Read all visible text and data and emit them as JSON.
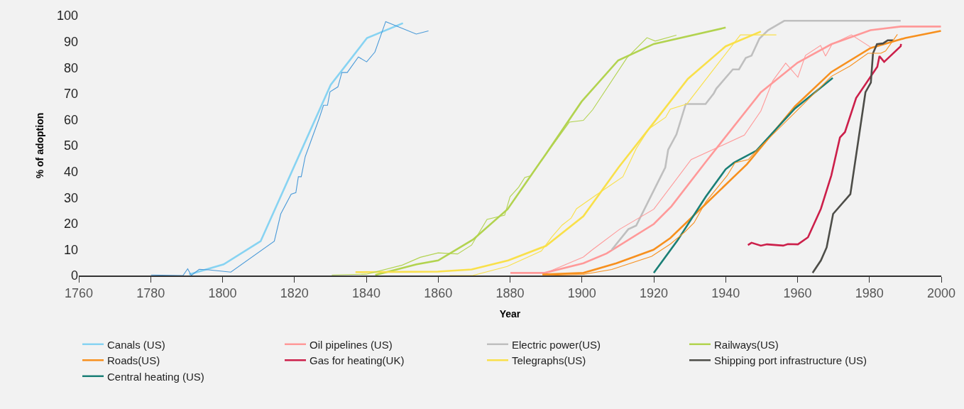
{
  "chart_data": {
    "type": "line",
    "xlabel": "Year",
    "ylabel": "% of adoption",
    "xlim": [
      1760,
      2000
    ],
    "xticks": [
      1760,
      1780,
      1800,
      1820,
      1840,
      1860,
      1880,
      1900,
      1920,
      1940,
      1960,
      1980,
      2000
    ],
    "ylim": [
      0,
      100
    ],
    "yticks": [
      0,
      10,
      20,
      30,
      40,
      50,
      60,
      70,
      80,
      90,
      100
    ],
    "grid": false,
    "legend": "bottom",
    "marker": "none",
    "line_style": "solid",
    "series": [
      {
        "name": "Canals (US)",
        "color": "#87d3f2",
        "x": [
          1790.7,
          1800.3,
          1810.6,
          1830.1,
          1840.2,
          1850.2
        ],
        "values": [
          0.4,
          4.3,
          13.2,
          73.4,
          91.4,
          97.1
        ]
      },
      {
        "name": "Oil pipelines (US)",
        "color": "#ff9999",
        "x": [
          1880.1,
          1889.6,
          1900.4,
          1906.9,
          1920,
          1924.9,
          1934.5,
          1949.8,
          1960,
          1969.4,
          1980.3,
          1988.7,
          1999.9
        ],
        "values": [
          1,
          1,
          4.7,
          8.5,
          19.8,
          26.6,
          43.8,
          70.5,
          81.9,
          89,
          94.4,
          95.8,
          95.8
        ]
      },
      {
        "name": "Electric power(US)",
        "color": "#bfbfbf",
        "x": [
          1908.3,
          1912.9,
          1915.1,
          1923.2,
          1924,
          1926.3,
          1928.9,
          1934.4,
          1936.7,
          1937.4,
          1942,
          1943.7,
          1945.6,
          1947.2,
          1949.4,
          1951.8,
          1956.3,
          1988.7
        ],
        "values": [
          9.9,
          17.8,
          19.2,
          41.6,
          48.4,
          54.3,
          66,
          66,
          70.1,
          71.9,
          79.3,
          79.3,
          83.7,
          84.6,
          91.2,
          94.4,
          98,
          98
        ]
      },
      {
        "name": "Railways(US)",
        "color": "#b2d34f",
        "x": [
          1842.5,
          1848.1,
          1854,
          1860,
          1869.7,
          1879.3,
          1889.9,
          1899.9,
          1910.1,
          1920,
          1940
        ],
        "values": [
          0.2,
          2.2,
          4.3,
          5.8,
          13.8,
          25.5,
          46.6,
          66.9,
          82.8,
          89.1,
          95.4
        ]
      },
      {
        "name": "Roads(US)",
        "color": "#f7901e",
        "x": [
          1889,
          1900.4,
          1909.6,
          1919.9,
          1924.6,
          1934.5,
          1945.9,
          1959.3,
          1969.4,
          1980.3,
          1990,
          1999.9
        ],
        "values": [
          0.4,
          1,
          4.7,
          9.9,
          14.4,
          27.6,
          42.8,
          65.1,
          78.3,
          87.5,
          91.4,
          94.1
        ]
      },
      {
        "name": "Gas for heating(UK)",
        "color": "#cc1f4a",
        "x": [
          1946.2,
          1947.2,
          1949.8,
          1951.5,
          1956,
          1957.3,
          1960.1,
          1962.9,
          1966.5,
          1969.4,
          1971.8,
          1973.2,
          1976.3,
          1982.2,
          1982.8,
          1984.1,
          1988.7,
          1988.8
        ],
        "values": [
          11.7,
          12.6,
          11.5,
          12,
          11.5,
          12.1,
          12,
          14.7,
          25.7,
          38.5,
          53.1,
          55.2,
          68.3,
          80.3,
          84.4,
          82.2,
          88.2,
          89.1
        ]
      },
      {
        "name": "Telegraphs(US)",
        "color": "#f9e04a",
        "x": [
          1837,
          1859.9,
          1869.3,
          1879.5,
          1890,
          1900.4,
          1910.2,
          1919.7,
          1929.5,
          1940,
          1949.8
        ],
        "values": [
          1.3,
          1.5,
          2.3,
          5.8,
          11.4,
          22.8,
          41.6,
          58.3,
          75.7,
          88.2,
          93.9
        ]
      },
      {
        "name": "Shipping port infrastructure (US)",
        "color": "#4d4d48",
        "x": [
          1964.2,
          1966.5,
          1968.1,
          1969.9,
          1974.7,
          1978.9,
          1980.4,
          1981,
          1982.1,
          1983.8,
          1985.1,
          1986.6
        ],
        "values": [
          1,
          5.8,
          10.8,
          23.7,
          31.3,
          70.5,
          74.2,
          85.5,
          89,
          89.3,
          90.5,
          90.5
        ]
      },
      {
        "name": "Central heating (US)",
        "color": "#1a7f76",
        "x": [
          1920,
          1926.6,
          1934.5,
          1940,
          1942.3,
          1948.5,
          1959.3,
          1969.8
        ],
        "values": [
          1,
          13.5,
          30.4,
          40.9,
          43.4,
          48,
          64.3,
          76
        ]
      },
      {
        "color": "#4a9ad8",
        "x": [
          1780.1,
          1789,
          1790.3,
          1791.3,
          1793.5,
          1796.1,
          1802.3,
          1814.4,
          1816.2,
          1819.1,
          1820.4,
          1821.1,
          1821.9,
          1823,
          1826.8,
          1828.1,
          1829.2,
          1829.9,
          1832.1,
          1833.2,
          1834.7,
          1837.8,
          1840.1,
          1842.4,
          1845.4,
          1853.9,
          1857.3
        ],
        "values": [
          0.2,
          0,
          2.6,
          0,
          2.4,
          2.2,
          1.3,
          13.2,
          23.7,
          31.3,
          31.9,
          38,
          38,
          45.7,
          60.1,
          65.5,
          65.5,
          70.7,
          72.6,
          78.1,
          78.1,
          84.1,
          82.2,
          86,
          97.7,
          92.9,
          94.1
        ]
      },
      {
        "color": "#b2d34f",
        "x": [
          1830.4,
          1840,
          1850,
          1855,
          1860,
          1865.4,
          1869.3,
          1873.6,
          1878.5,
          1880,
          1882.4,
          1884.1,
          1885.7,
          1896.5,
          1900.4,
          1903,
          1912.5,
          1918.1,
          1920.4,
          1926.3
        ],
        "values": [
          0.2,
          0.5,
          4,
          7,
          8.7,
          8.3,
          11.7,
          21.6,
          23.2,
          30.3,
          34,
          37.7,
          38.4,
          59,
          59.7,
          63.8,
          83.7,
          91.5,
          90.2,
          92.5
        ]
      },
      {
        "color": "#f9e04a",
        "x": [
          1863.2,
          1869.6,
          1879.2,
          1888.7,
          1891.6,
          1894.5,
          1897,
          1898.5,
          1904,
          1911.4,
          1915.1,
          1918.7,
          1923.3,
          1924.6,
          1929.2,
          1937.8,
          1944.1,
          1954.1
        ],
        "values": [
          0,
          0,
          3.5,
          9.4,
          14.8,
          19.4,
          22.1,
          25.7,
          31,
          38,
          48.8,
          56.5,
          60.9,
          64,
          66,
          81.4,
          92.6,
          92.6
        ]
      },
      {
        "color": "#ff9999",
        "x": [
          1890,
          1900.4,
          1902.9,
          1910.5,
          1920,
          1930.4,
          1945.2,
          1949.8,
          1953.1,
          1956.7,
          1960.1,
          1962.2,
          1966.4,
          1967.8,
          1969.6,
          1975,
          1980.4
        ],
        "values": [
          1,
          7.1,
          9.9,
          17.8,
          25.5,
          44.6,
          54,
          63.3,
          74.9,
          81.7,
          76.3,
          84.7,
          88.5,
          84.4,
          89,
          92.6,
          87.8
        ]
      },
      {
        "color": "#f7901e",
        "x": [
          1889.1,
          1900.4,
          1908.3,
          1919.4,
          1924.6,
          1928.6,
          1931.2,
          1934.5,
          1940.4,
          1942.6,
          1946.3,
          1948.2,
          1969.4,
          1974.6,
          1979.6,
          1983.2,
          1984.5,
          1987.8
        ],
        "values": [
          0,
          0.4,
          2.3,
          7.4,
          12.1,
          16.7,
          20.3,
          28.4,
          38.4,
          43.4,
          44.6,
          47.5,
          76.6,
          80.6,
          85.5,
          85.5,
          86.4,
          92.8
        ]
      }
    ]
  }
}
